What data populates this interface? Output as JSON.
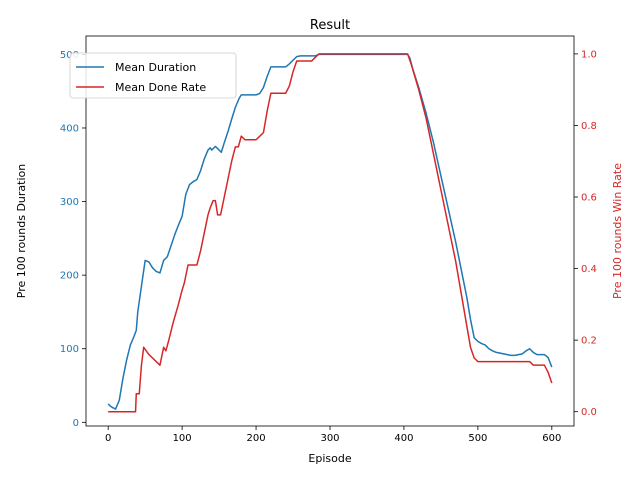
{
  "chart_data": {
    "type": "line",
    "title": "Result",
    "xlabel": "Episode",
    "ylabel_left": "Pre 100 rounds Duration",
    "ylabel_right": "Pre 100 rounds Win Rate",
    "xlim": [
      -30,
      630
    ],
    "ylim_left": [
      -5,
      525
    ],
    "ylim_right": [
      -0.04,
      1.05
    ],
    "xticks": [
      "0",
      "100",
      "200",
      "300",
      "400",
      "500",
      "600"
    ],
    "yticks_left": [
      "0",
      "100",
      "200",
      "300",
      "400",
      "500"
    ],
    "yticks_right": [
      "0.0",
      "0.2",
      "0.4",
      "0.6",
      "0.8",
      "1.0"
    ],
    "grid": false,
    "legend_position": "upper-left",
    "colors": {
      "duration": "#1f77b4",
      "done_rate": "#d62728"
    },
    "series": [
      {
        "name": "Mean Duration",
        "axis": "left",
        "points": [
          [
            0,
            25
          ],
          [
            3,
            22
          ],
          [
            6,
            20
          ],
          [
            10,
            18
          ],
          [
            15,
            30
          ],
          [
            20,
            60
          ],
          [
            25,
            85
          ],
          [
            30,
            105
          ],
          [
            35,
            117
          ],
          [
            38,
            125
          ],
          [
            40,
            150
          ],
          [
            45,
            185
          ],
          [
            50,
            220
          ],
          [
            55,
            218
          ],
          [
            60,
            210
          ],
          [
            65,
            205
          ],
          [
            70,
            203
          ],
          [
            75,
            220
          ],
          [
            80,
            225
          ],
          [
            85,
            240
          ],
          [
            90,
            255
          ],
          [
            95,
            268
          ],
          [
            100,
            280
          ],
          [
            105,
            310
          ],
          [
            110,
            323
          ],
          [
            115,
            327
          ],
          [
            120,
            330
          ],
          [
            125,
            342
          ],
          [
            130,
            358
          ],
          [
            135,
            370
          ],
          [
            138,
            373
          ],
          [
            140,
            370
          ],
          [
            145,
            375
          ],
          [
            150,
            370
          ],
          [
            153,
            367
          ],
          [
            157,
            380
          ],
          [
            162,
            395
          ],
          [
            167,
            412
          ],
          [
            172,
            428
          ],
          [
            177,
            440
          ],
          [
            180,
            445
          ],
          [
            185,
            445
          ],
          [
            190,
            445
          ],
          [
            200,
            445
          ],
          [
            205,
            447
          ],
          [
            210,
            455
          ],
          [
            215,
            470
          ],
          [
            220,
            483
          ],
          [
            230,
            483
          ],
          [
            240,
            483
          ],
          [
            245,
            487
          ],
          [
            250,
            492
          ],
          [
            255,
            497
          ],
          [
            260,
            498
          ],
          [
            270,
            498
          ],
          [
            280,
            498
          ],
          [
            285,
            500
          ],
          [
            300,
            500
          ],
          [
            350,
            500
          ],
          [
            400,
            500
          ],
          [
            405,
            500
          ],
          [
            408,
            495
          ],
          [
            412,
            480
          ],
          [
            420,
            455
          ],
          [
            430,
            420
          ],
          [
            440,
            380
          ],
          [
            450,
            335
          ],
          [
            460,
            290
          ],
          [
            470,
            245
          ],
          [
            480,
            195
          ],
          [
            485,
            170
          ],
          [
            490,
            140
          ],
          [
            495,
            115
          ],
          [
            500,
            110
          ],
          [
            505,
            107
          ],
          [
            510,
            105
          ],
          [
            515,
            100
          ],
          [
            520,
            97
          ],
          [
            525,
            95
          ],
          [
            530,
            94
          ],
          [
            535,
            93
          ],
          [
            540,
            92
          ],
          [
            545,
            91
          ],
          [
            550,
            91
          ],
          [
            555,
            92
          ],
          [
            560,
            93
          ],
          [
            565,
            97
          ],
          [
            570,
            100
          ],
          [
            575,
            95
          ],
          [
            580,
            92
          ],
          [
            585,
            92
          ],
          [
            590,
            92
          ],
          [
            595,
            88
          ],
          [
            600,
            75
          ]
        ]
      },
      {
        "name": "Mean Done Rate",
        "axis": "right",
        "points": [
          [
            0,
            0
          ],
          [
            10,
            0
          ],
          [
            20,
            0
          ],
          [
            30,
            0
          ],
          [
            37,
            0
          ],
          [
            38,
            0.05
          ],
          [
            42,
            0.05
          ],
          [
            45,
            0.13
          ],
          [
            48,
            0.18
          ],
          [
            55,
            0.16
          ],
          [
            60,
            0.15
          ],
          [
            65,
            0.14
          ],
          [
            70,
            0.13
          ],
          [
            75,
            0.18
          ],
          [
            78,
            0.17
          ],
          [
            82,
            0.2
          ],
          [
            88,
            0.25
          ],
          [
            95,
            0.3
          ],
          [
            100,
            0.34
          ],
          [
            103,
            0.36
          ],
          [
            108,
            0.41
          ],
          [
            115,
            0.41
          ],
          [
            120,
            0.41
          ],
          [
            125,
            0.45
          ],
          [
            130,
            0.5
          ],
          [
            135,
            0.55
          ],
          [
            138,
            0.57
          ],
          [
            142,
            0.59
          ],
          [
            145,
            0.59
          ],
          [
            148,
            0.55
          ],
          [
            152,
            0.55
          ],
          [
            157,
            0.6
          ],
          [
            162,
            0.65
          ],
          [
            167,
            0.7
          ],
          [
            172,
            0.74
          ],
          [
            176,
            0.74
          ],
          [
            180,
            0.77
          ],
          [
            185,
            0.76
          ],
          [
            190,
            0.76
          ],
          [
            200,
            0.76
          ],
          [
            205,
            0.77
          ],
          [
            210,
            0.78
          ],
          [
            215,
            0.84
          ],
          [
            220,
            0.89
          ],
          [
            230,
            0.89
          ],
          [
            240,
            0.89
          ],
          [
            245,
            0.91
          ],
          [
            250,
            0.95
          ],
          [
            255,
            0.98
          ],
          [
            260,
            0.98
          ],
          [
            270,
            0.98
          ],
          [
            275,
            0.98
          ],
          [
            280,
            0.99
          ],
          [
            285,
            1.0
          ],
          [
            300,
            1.0
          ],
          [
            350,
            1.0
          ],
          [
            400,
            1.0
          ],
          [
            405,
            1.0
          ],
          [
            410,
            0.97
          ],
          [
            420,
            0.9
          ],
          [
            430,
            0.82
          ],
          [
            440,
            0.72
          ],
          [
            450,
            0.62
          ],
          [
            460,
            0.52
          ],
          [
            470,
            0.42
          ],
          [
            480,
            0.3
          ],
          [
            490,
            0.18
          ],
          [
            495,
            0.15
          ],
          [
            500,
            0.14
          ],
          [
            510,
            0.14
          ],
          [
            520,
            0.14
          ],
          [
            530,
            0.14
          ],
          [
            540,
            0.14
          ],
          [
            550,
            0.14
          ],
          [
            560,
            0.14
          ],
          [
            570,
            0.14
          ],
          [
            575,
            0.13
          ],
          [
            580,
            0.13
          ],
          [
            590,
            0.13
          ],
          [
            595,
            0.11
          ],
          [
            600,
            0.08
          ]
        ]
      }
    ]
  }
}
